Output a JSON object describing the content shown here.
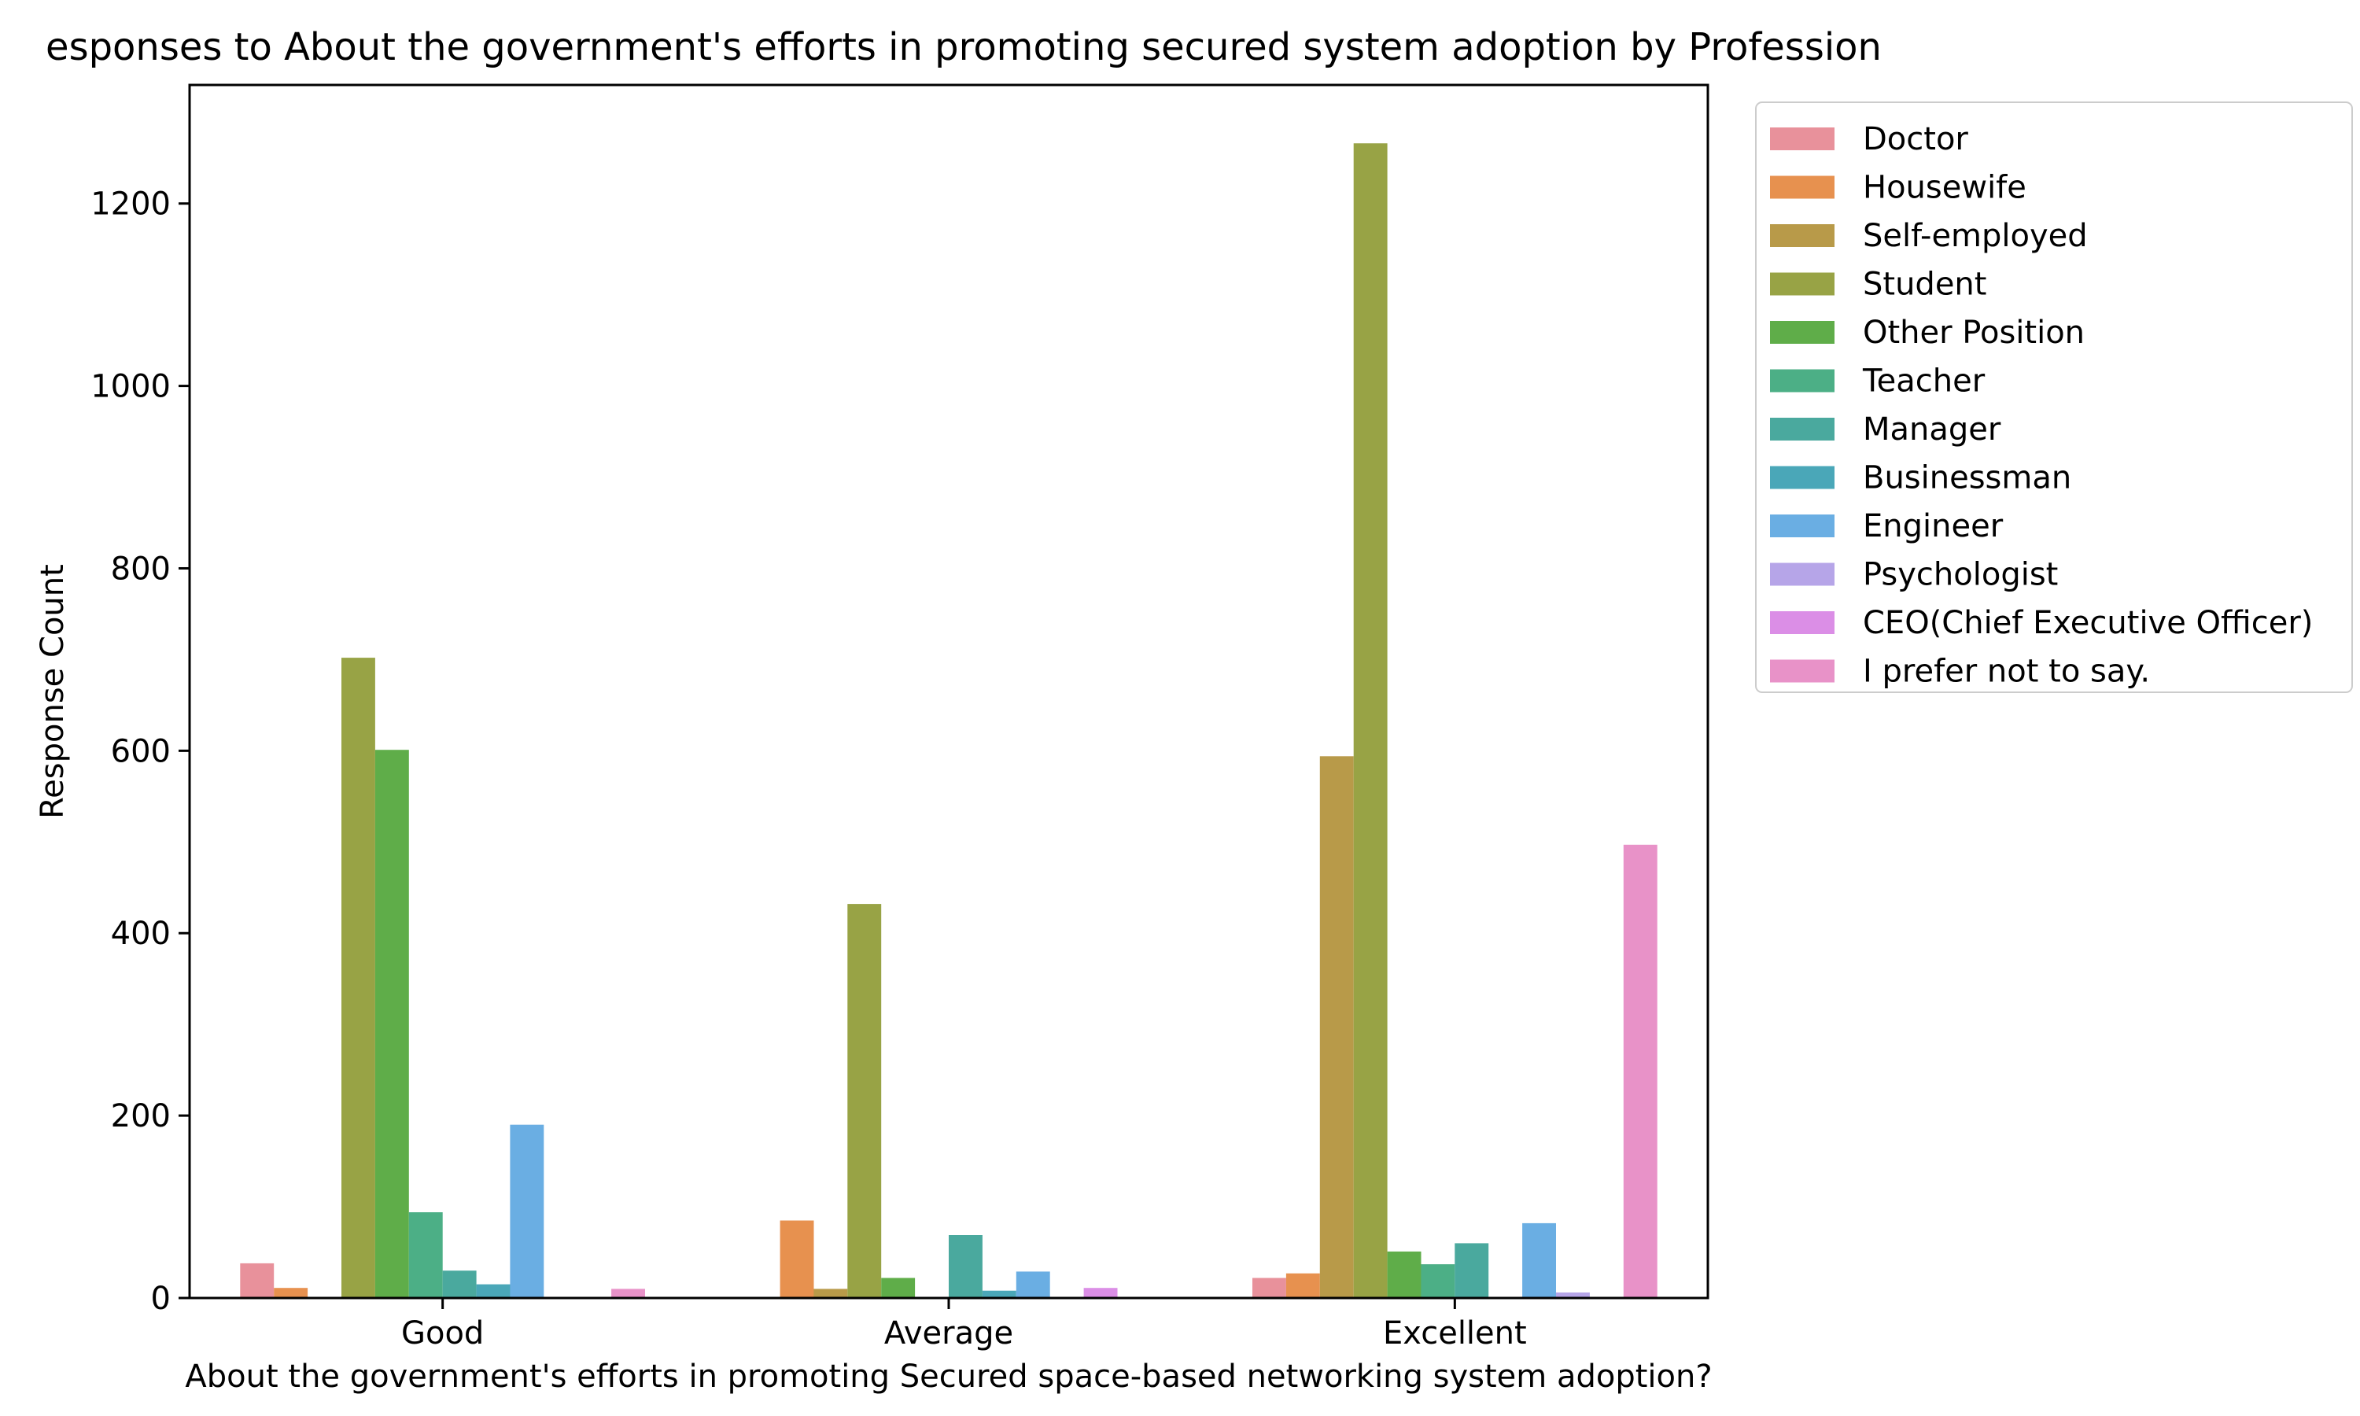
{
  "chart_data": {
    "type": "bar",
    "title": "esponses to About the government's efforts in promoting secured system adoption by Profession",
    "xlabel": "About the government's efforts in promoting Secured space-based networking system adoption?",
    "ylabel": "Response Count",
    "categories": [
      "Good",
      "Average",
      "Excellent"
    ],
    "ylim": [
      0,
      1330
    ],
    "yticks": [
      0,
      200,
      400,
      600,
      800,
      1000,
      1200
    ],
    "grid": false,
    "legend_position": "outside-right-top",
    "series": [
      {
        "name": "Doctor",
        "color": "#e8919b",
        "values": [
          38,
          null,
          22
        ]
      },
      {
        "name": "Housewife",
        "color": "#e7914f",
        "values": [
          11,
          85,
          27
        ]
      },
      {
        "name": "Self-employed",
        "color": "#b89a49",
        "values": [
          null,
          10,
          594
        ]
      },
      {
        "name": "Student",
        "color": "#98a345",
        "values": [
          702,
          432,
          1266
        ]
      },
      {
        "name": "Other Position",
        "color": "#5fad49",
        "values": [
          601,
          22,
          51
        ]
      },
      {
        "name": "Teacher",
        "color": "#4caf86",
        "values": [
          94,
          null,
          37
        ]
      },
      {
        "name": "Manager",
        "color": "#4aa99e",
        "values": [
          30,
          69,
          60
        ]
      },
      {
        "name": "Businessman",
        "color": "#4aa7b8",
        "values": [
          15,
          8,
          null
        ]
      },
      {
        "name": "Engineer",
        "color": "#6aaee3",
        "values": [
          190,
          29,
          82
        ]
      },
      {
        "name": "Psychologist",
        "color": "#b6a5e8",
        "values": [
          null,
          null,
          6
        ]
      },
      {
        "name": "CEO(Chief Executive Officer)",
        "color": "#db8ee6",
        "values": [
          null,
          11,
          null
        ]
      },
      {
        "name": "I prefer not to say.",
        "color": "#e892c8",
        "values": [
          10,
          null,
          497
        ]
      }
    ]
  }
}
